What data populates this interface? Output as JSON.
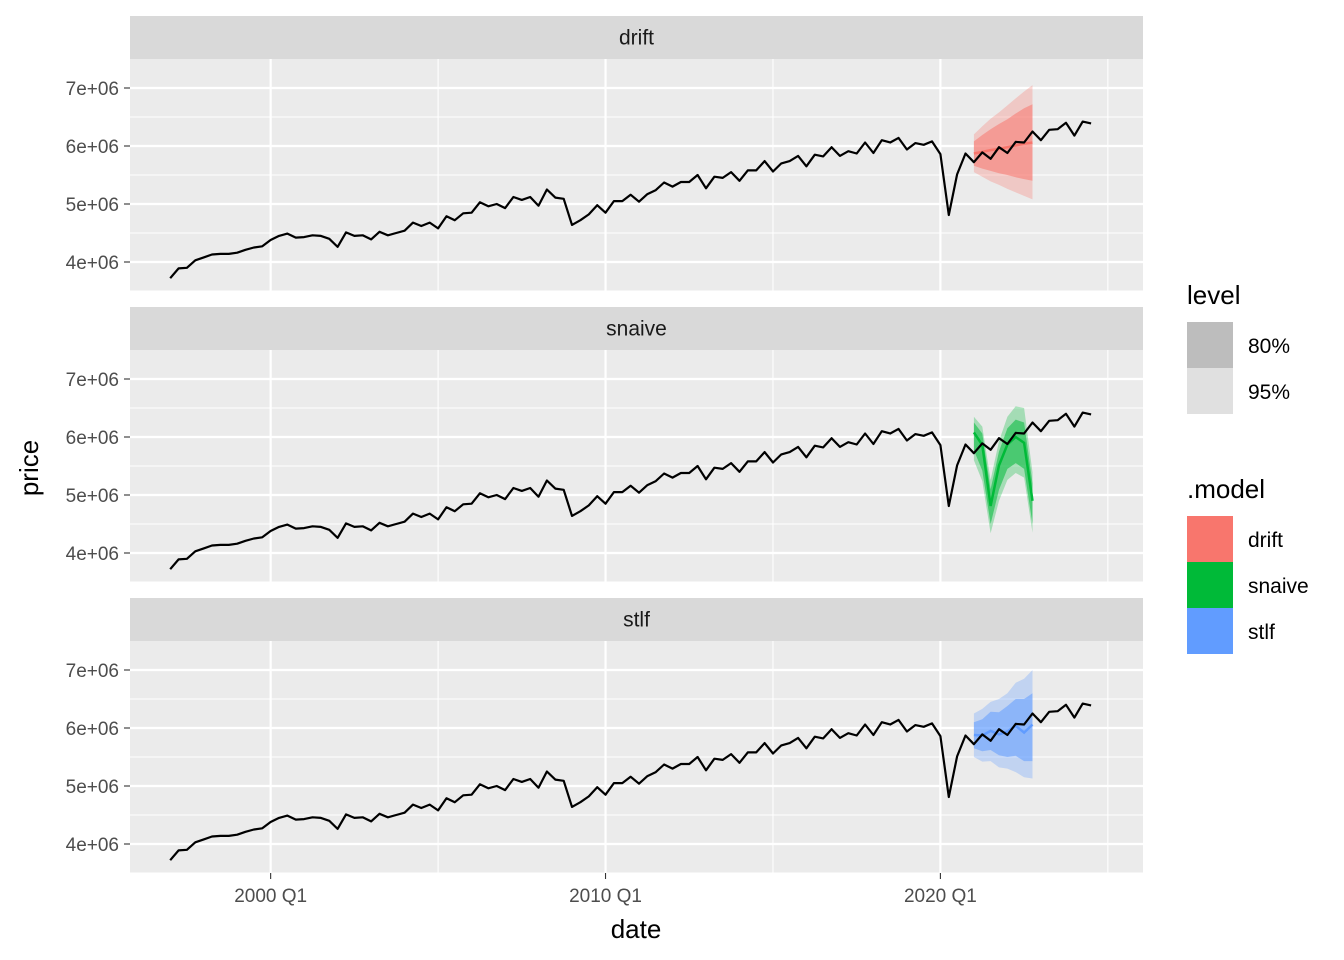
{
  "chart_data": {
    "type": "line",
    "xlabel": "date",
    "ylabel": "price",
    "x_tick_labels": [
      "2000 Q1",
      "2010 Q1",
      "2020 Q1"
    ],
    "y_tick_labels": [
      "4e+06",
      "5e+06",
      "6e+06",
      "7e+06"
    ],
    "ylim": [
      3500000,
      7500000
    ],
    "grid": true,
    "legend_position": "right",
    "panels": [
      "drift",
      "snaive",
      "stlf"
    ],
    "legend_level": {
      "title": "level",
      "items": [
        {
          "label": "80%",
          "color": "#bdbdbd"
        },
        {
          "label": "95%",
          "color": "#e0e0e0"
        }
      ]
    },
    "legend_model": {
      "title": ".model",
      "items": [
        {
          "label": "drift",
          "color": "#F8766D"
        },
        {
          "label": "snaive",
          "color": "#00BA38"
        },
        {
          "label": "stlf",
          "color": "#619CFF"
        }
      ]
    },
    "history": {
      "name": "price",
      "x": [
        "1997 Q1",
        "1997 Q2",
        "1997 Q3",
        "1997 Q4",
        "1998 Q1",
        "1998 Q2",
        "1998 Q3",
        "1998 Q4",
        "1999 Q1",
        "1999 Q2",
        "1999 Q3",
        "1999 Q4",
        "2000 Q1",
        "2000 Q2",
        "2000 Q3",
        "2000 Q4",
        "2001 Q1",
        "2001 Q2",
        "2001 Q3",
        "2001 Q4",
        "2002 Q1",
        "2002 Q2",
        "2002 Q3",
        "2002 Q4",
        "2003 Q1",
        "2003 Q2",
        "2003 Q3",
        "2003 Q4",
        "2004 Q1",
        "2004 Q2",
        "2004 Q3",
        "2004 Q4",
        "2005 Q1",
        "2005 Q2",
        "2005 Q3",
        "2005 Q4",
        "2006 Q1",
        "2006 Q2",
        "2006 Q3",
        "2006 Q4",
        "2007 Q1",
        "2007 Q2",
        "2007 Q3",
        "2007 Q4",
        "2008 Q1",
        "2008 Q2",
        "2008 Q3",
        "2008 Q4",
        "2009 Q1",
        "2009 Q2",
        "2009 Q3",
        "2009 Q4",
        "2010 Q1",
        "2010 Q2",
        "2010 Q3",
        "2010 Q4",
        "2011 Q1",
        "2011 Q2",
        "2011 Q3",
        "2011 Q4",
        "2012 Q1",
        "2012 Q2",
        "2012 Q3",
        "2012 Q4",
        "2013 Q1",
        "2013 Q2",
        "2013 Q3",
        "2013 Q4",
        "2014 Q1",
        "2014 Q2",
        "2014 Q3",
        "2014 Q4",
        "2015 Q1",
        "2015 Q2",
        "2015 Q3",
        "2015 Q4",
        "2016 Q1",
        "2016 Q2",
        "2016 Q3",
        "2016 Q4",
        "2017 Q1",
        "2017 Q2",
        "2017 Q3",
        "2017 Q4",
        "2018 Q1",
        "2018 Q2",
        "2018 Q3",
        "2018 Q4",
        "2019 Q1",
        "2019 Q2",
        "2019 Q3",
        "2019 Q4",
        "2020 Q1",
        "2020 Q2",
        "2020 Q3",
        "2020 Q4",
        "2021 Q1",
        "2021 Q2",
        "2021 Q3",
        "2021 Q4",
        "2022 Q1",
        "2022 Q2",
        "2022 Q3",
        "2022 Q4",
        "2023 Q1",
        "2023 Q2",
        "2023 Q3",
        "2023 Q4",
        "2024 Q1",
        "2024 Q2",
        "2024 Q3"
      ],
      "y": [
        3720000,
        3890000,
        3900000,
        4030000,
        4080000,
        4130000,
        4140000,
        4140000,
        4160000,
        4210000,
        4250000,
        4270000,
        4380000,
        4450000,
        4490000,
        4420000,
        4430000,
        4460000,
        4450000,
        4400000,
        4260000,
        4510000,
        4450000,
        4460000,
        4390000,
        4520000,
        4460000,
        4500000,
        4540000,
        4680000,
        4620000,
        4680000,
        4580000,
        4790000,
        4720000,
        4840000,
        4850000,
        5030000,
        4960000,
        5000000,
        4930000,
        5120000,
        5070000,
        5120000,
        4970000,
        5250000,
        5110000,
        5090000,
        4640000,
        4720000,
        4820000,
        4980000,
        4850000,
        5050000,
        5050000,
        5160000,
        5040000,
        5170000,
        5240000,
        5370000,
        5300000,
        5380000,
        5380000,
        5500000,
        5270000,
        5470000,
        5450000,
        5550000,
        5400000,
        5580000,
        5580000,
        5740000,
        5560000,
        5700000,
        5740000,
        5830000,
        5650000,
        5850000,
        5820000,
        5980000,
        5830000,
        5910000,
        5870000,
        6060000,
        5880000,
        6100000,
        6060000,
        6140000,
        5940000,
        6050000,
        6020000,
        6080000,
        5860000,
        4810000,
        5510000,
        5870000,
        5720000,
        5890000,
        5780000,
        5980000,
        5880000,
        6070000,
        6060000,
        6250000,
        6100000,
        6280000,
        6290000,
        6400000,
        6180000,
        6420000,
        6390000
      ]
    },
    "forecasts": {
      "x": [
        "2021 Q1",
        "2021 Q2",
        "2021 Q3",
        "2021 Q4",
        "2022 Q1",
        "2022 Q2",
        "2022 Q3",
        "2022 Q4"
      ],
      "drift": {
        "mean": [
          5870000,
          5900000,
          5930000,
          5950000,
          5980000,
          6010000,
          6040000,
          6060000
        ],
        "lo80": [
          5660000,
          5610000,
          5570000,
          5530000,
          5500000,
          5460000,
          5430000,
          5400000
        ],
        "hi80": [
          6080000,
          6190000,
          6290000,
          6380000,
          6460000,
          6560000,
          6650000,
          6720000
        ],
        "lo95": [
          5550000,
          5470000,
          5390000,
          5330000,
          5260000,
          5200000,
          5140000,
          5080000
        ],
        "hi95": [
          6200000,
          6340000,
          6470000,
          6580000,
          6700000,
          6820000,
          6940000,
          7050000
        ]
      },
      "snaive": {
        "mean": [
          6080000,
          5860000,
          4810000,
          5510000,
          5870000,
          6000000,
          5900000,
          4900000
        ],
        "lo80": [
          5770000,
          5420000,
          4500000,
          5090000,
          5450000,
          5550000,
          5450000,
          4500000
        ],
        "hi80": [
          6250000,
          6060000,
          5100000,
          5750000,
          6150000,
          6300000,
          6250000,
          5200000
        ],
        "lo95": [
          5600000,
          5240000,
          4340000,
          4900000,
          5260000,
          5380000,
          5300000,
          4350000
        ],
        "hi95": [
          6350000,
          6180000,
          5260000,
          5930000,
          6350000,
          6530000,
          6500000,
          5390000
        ]
      },
      "stlf": {
        "mean": [
          5880000,
          5870000,
          5950000,
          5890000,
          5940000,
          6040000,
          5920000,
          6060000
        ],
        "lo80": [
          5650000,
          5600000,
          5620000,
          5530000,
          5500000,
          5520000,
          5430000,
          5430000
        ],
        "hi80": [
          6100000,
          6150000,
          6280000,
          6270000,
          6380000,
          6500000,
          6500000,
          6600000
        ],
        "lo95": [
          5500000,
          5420000,
          5430000,
          5320000,
          5300000,
          5240000,
          5150000,
          5130000
        ],
        "hi95": [
          6250000,
          6330000,
          6450000,
          6500000,
          6600000,
          6780000,
          6850000,
          7000000
        ]
      }
    }
  }
}
